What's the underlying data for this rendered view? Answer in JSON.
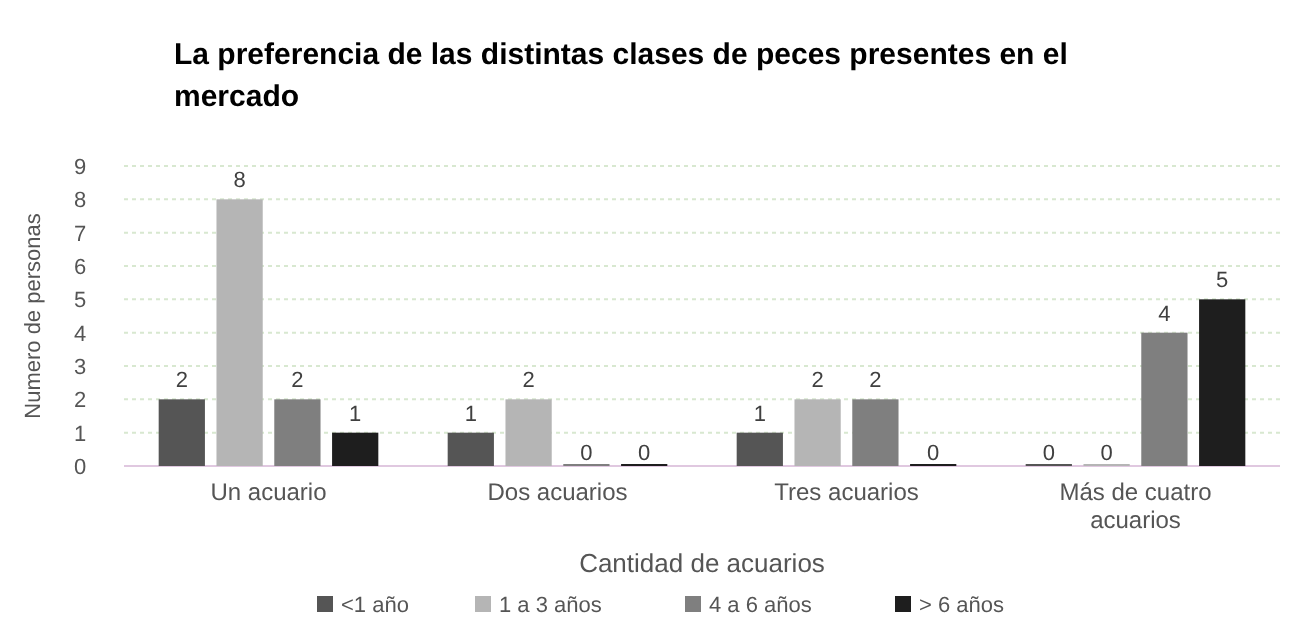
{
  "chart_data": {
    "type": "bar",
    "title": "La preferencia de las distintas clases de peces presentes en el mercado",
    "xlabel": "Cantidad de acuarios",
    "ylabel": "Numero de personas",
    "categories": [
      "Un acuario",
      "Dos acuarios",
      "Tres acuarios",
      "Más de cuatro acuarios"
    ],
    "series": [
      {
        "name": "<1 año",
        "color": "#555555",
        "values": [
          2,
          1,
          1,
          0
        ]
      },
      {
        "name": "1 a 3 años",
        "color": "#b5b5b5",
        "values": [
          8,
          2,
          2,
          0
        ]
      },
      {
        "name": "4 a 6 años",
        "color": "#7f7f7f",
        "values": [
          2,
          0,
          2,
          4
        ]
      },
      {
        "name": "> 6 años",
        "color": "#1e1e1e",
        "values": [
          1,
          0,
          0,
          5
        ]
      }
    ],
    "ylim": [
      0,
      9
    ],
    "yticks": [
      0,
      1,
      2,
      3,
      4,
      5,
      6,
      7,
      8,
      9
    ],
    "grid": "y",
    "legend": "bottom",
    "data_labels": true
  }
}
